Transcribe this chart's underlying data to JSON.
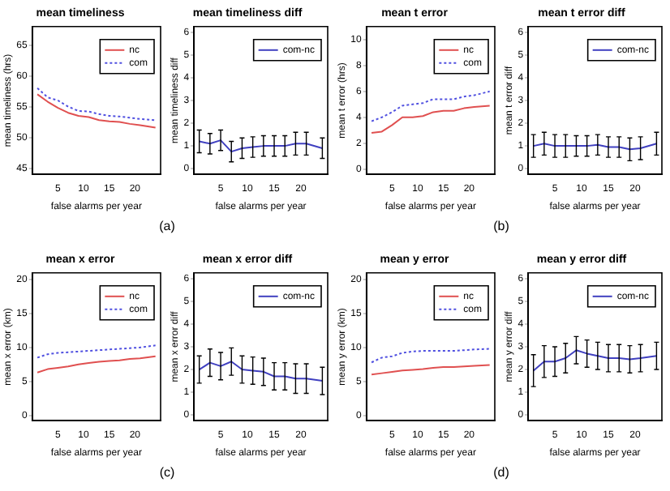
{
  "chart_data": [
    {
      "type": "line",
      "title": "mean timeliness",
      "xlabel": "false alarms per year",
      "ylabel": "mean timeliness (hrs)",
      "x": [
        1,
        3,
        5,
        7,
        9,
        11,
        13,
        15,
        17,
        19,
        21,
        24
      ],
      "xlim": [
        0,
        25
      ],
      "xticks": [
        5,
        10,
        15,
        20
      ],
      "ylim": [
        44,
        68
      ],
      "yticks": [
        45,
        50,
        55,
        60,
        65
      ],
      "legend": "top right",
      "grid": false,
      "marker": "none",
      "annotations": [
        "(a)"
      ],
      "series": [
        {
          "name": "nc",
          "color": "#e05050",
          "line_style": "solid",
          "values": [
            57,
            55.8,
            54.8,
            54,
            53.5,
            53.3,
            52.8,
            52.6,
            52.5,
            52.2,
            52,
            51.6
          ]
        },
        {
          "name": "com",
          "color": "#5050e0",
          "line_style": "dotted",
          "values": [
            58,
            56.5,
            56,
            55,
            54.3,
            54.2,
            53.8,
            53.5,
            53.4,
            53.2,
            53,
            52.8
          ]
        }
      ]
    },
    {
      "type": "line",
      "title": "mean timeliness diff",
      "xlabel": "false alarms per year",
      "ylabel": "mean timeliness diff",
      "x": [
        1,
        3,
        5,
        7,
        9,
        11,
        13,
        15,
        17,
        19,
        21,
        24
      ],
      "xlim": [
        0,
        25
      ],
      "xticks": [
        5,
        10,
        15,
        20
      ],
      "ylim": [
        -0.25,
        6.25
      ],
      "yticks": [
        0,
        1,
        2,
        3,
        4,
        5,
        6
      ],
      "legend": "top right",
      "grid": false,
      "marker": "none",
      "series": [
        {
          "name": "com-nc",
          "color": "#4040c0",
          "line_style": "solid",
          "values": [
            1.2,
            1.1,
            1.25,
            0.75,
            0.9,
            0.95,
            1,
            1,
            1,
            1.1,
            1.1,
            0.9
          ],
          "errors": [
            0.5,
            0.45,
            0.45,
            0.45,
            0.45,
            0.45,
            0.45,
            0.45,
            0.45,
            0.5,
            0.5,
            0.45
          ]
        }
      ]
    },
    {
      "type": "line",
      "title": "mean t error",
      "xlabel": "false alarms per year",
      "ylabel": "mean t error (hrs)",
      "x": [
        1,
        3,
        5,
        7,
        9,
        11,
        13,
        15,
        17,
        19,
        21,
        24
      ],
      "xlim": [
        0,
        25
      ],
      "xticks": [
        5,
        10,
        15,
        20
      ],
      "ylim": [
        -0.4,
        11
      ],
      "yticks": [
        0,
        2,
        4,
        6,
        8,
        10
      ],
      "legend": "top right",
      "grid": false,
      "marker": "none",
      "annotations": [
        "(b)"
      ],
      "series": [
        {
          "name": "nc",
          "color": "#e05050",
          "line_style": "solid",
          "values": [
            2.8,
            2.9,
            3.4,
            4,
            4,
            4.1,
            4.4,
            4.5,
            4.5,
            4.7,
            4.8,
            4.9
          ]
        },
        {
          "name": "com",
          "color": "#5050e0",
          "line_style": "dotted",
          "values": [
            3.7,
            4,
            4.4,
            4.9,
            5,
            5.1,
            5.4,
            5.4,
            5.4,
            5.6,
            5.7,
            6
          ]
        }
      ]
    },
    {
      "type": "line",
      "title": "mean t error diff",
      "xlabel": "false alarms per year",
      "ylabel": "mean t error diff",
      "x": [
        1,
        3,
        5,
        7,
        9,
        11,
        13,
        15,
        17,
        19,
        21,
        24
      ],
      "xlim": [
        0,
        25
      ],
      "xticks": [
        5,
        10,
        15,
        20
      ],
      "ylim": [
        -0.25,
        6.25
      ],
      "yticks": [
        0,
        1,
        2,
        3,
        4,
        5,
        6
      ],
      "legend": "top right",
      "grid": false,
      "marker": "none",
      "series": [
        {
          "name": "com-nc",
          "color": "#4040c0",
          "line_style": "solid",
          "values": [
            1,
            1.1,
            1,
            1,
            1,
            1,
            1.05,
            0.95,
            0.95,
            0.85,
            0.9,
            1.1
          ],
          "errors": [
            0.5,
            0.5,
            0.5,
            0.5,
            0.45,
            0.45,
            0.45,
            0.45,
            0.45,
            0.5,
            0.5,
            0.5
          ]
        }
      ]
    },
    {
      "type": "line",
      "title": "mean x error",
      "xlabel": "false alarms per year",
      "ylabel": "mean x error (km)",
      "x": [
        1,
        3,
        5,
        7,
        9,
        11,
        13,
        15,
        17,
        19,
        21,
        24
      ],
      "xlim": [
        0,
        25
      ],
      "xticks": [
        5,
        10,
        15,
        20
      ],
      "ylim": [
        -0.8,
        21
      ],
      "yticks": [
        0,
        5,
        10,
        15,
        20
      ],
      "legend": "top right",
      "grid": false,
      "marker": "none",
      "annotations": [
        "(c)"
      ],
      "series": [
        {
          "name": "nc",
          "color": "#e05050",
          "line_style": "solid",
          "values": [
            6.3,
            6.8,
            7,
            7.2,
            7.5,
            7.7,
            7.9,
            8,
            8.1,
            8.3,
            8.4,
            8.7
          ]
        },
        {
          "name": "com",
          "color": "#5050e0",
          "line_style": "dotted",
          "values": [
            8.5,
            9,
            9.2,
            9.3,
            9.4,
            9.5,
            9.6,
            9.7,
            9.8,
            9.9,
            10,
            10.3
          ]
        }
      ]
    },
    {
      "type": "line",
      "title": "mean x error diff",
      "xlabel": "false alarms per year",
      "ylabel": "mean x error diff",
      "x": [
        1,
        3,
        5,
        7,
        9,
        11,
        13,
        15,
        17,
        19,
        21,
        24
      ],
      "xlim": [
        0,
        25
      ],
      "xticks": [
        5,
        10,
        15,
        20
      ],
      "ylim": [
        -0.25,
        6.25
      ],
      "yticks": [
        0,
        1,
        2,
        3,
        4,
        5,
        6
      ],
      "legend": "top right",
      "grid": false,
      "marker": "none",
      "series": [
        {
          "name": "com-nc",
          "color": "#4040c0",
          "line_style": "solid",
          "values": [
            2,
            2.3,
            2.15,
            2.35,
            2,
            1.95,
            1.9,
            1.7,
            1.7,
            1.6,
            1.6,
            1.5
          ],
          "errors": [
            0.6,
            0.6,
            0.6,
            0.6,
            0.6,
            0.6,
            0.6,
            0.6,
            0.6,
            0.65,
            0.65,
            0.6
          ]
        }
      ]
    },
    {
      "type": "line",
      "title": "mean y error",
      "xlabel": "false alarms per year",
      "ylabel": "mean y error (km)",
      "x": [
        1,
        3,
        5,
        7,
        9,
        11,
        13,
        15,
        17,
        19,
        21,
        24
      ],
      "xlim": [
        0,
        25
      ],
      "xticks": [
        5,
        10,
        15,
        20
      ],
      "ylim": [
        -0.8,
        21
      ],
      "yticks": [
        0,
        5,
        10,
        15,
        20
      ],
      "legend": "top right",
      "grid": false,
      "marker": "none",
      "annotations": [
        "(d)"
      ],
      "series": [
        {
          "name": "nc",
          "color": "#e05050",
          "line_style": "solid",
          "values": [
            6,
            6.2,
            6.4,
            6.6,
            6.7,
            6.8,
            7,
            7.1,
            7.1,
            7.2,
            7.3,
            7.4
          ]
        },
        {
          "name": "com",
          "color": "#5050e0",
          "line_style": "dotted",
          "values": [
            7.8,
            8.5,
            8.7,
            9.2,
            9.4,
            9.5,
            9.5,
            9.5,
            9.5,
            9.6,
            9.7,
            9.8
          ]
        }
      ]
    },
    {
      "type": "line",
      "title": "mean y error diff",
      "xlabel": "false alarms per year",
      "ylabel": "mean y error diff",
      "x": [
        1,
        3,
        5,
        7,
        9,
        11,
        13,
        15,
        17,
        19,
        21,
        24
      ],
      "xlim": [
        0,
        25
      ],
      "xticks": [
        5,
        10,
        15,
        20
      ],
      "ylim": [
        -0.25,
        6.25
      ],
      "yticks": [
        0,
        1,
        2,
        3,
        4,
        5,
        6
      ],
      "legend": "top right",
      "grid": false,
      "marker": "none",
      "series": [
        {
          "name": "com-nc",
          "color": "#4040c0",
          "line_style": "solid",
          "values": [
            1.95,
            2.35,
            2.35,
            2.5,
            2.85,
            2.7,
            2.6,
            2.5,
            2.5,
            2.45,
            2.5,
            2.6
          ],
          "errors": [
            0.7,
            0.7,
            0.65,
            0.65,
            0.6,
            0.6,
            0.6,
            0.6,
            0.6,
            0.6,
            0.6,
            0.6
          ]
        }
      ]
    }
  ]
}
